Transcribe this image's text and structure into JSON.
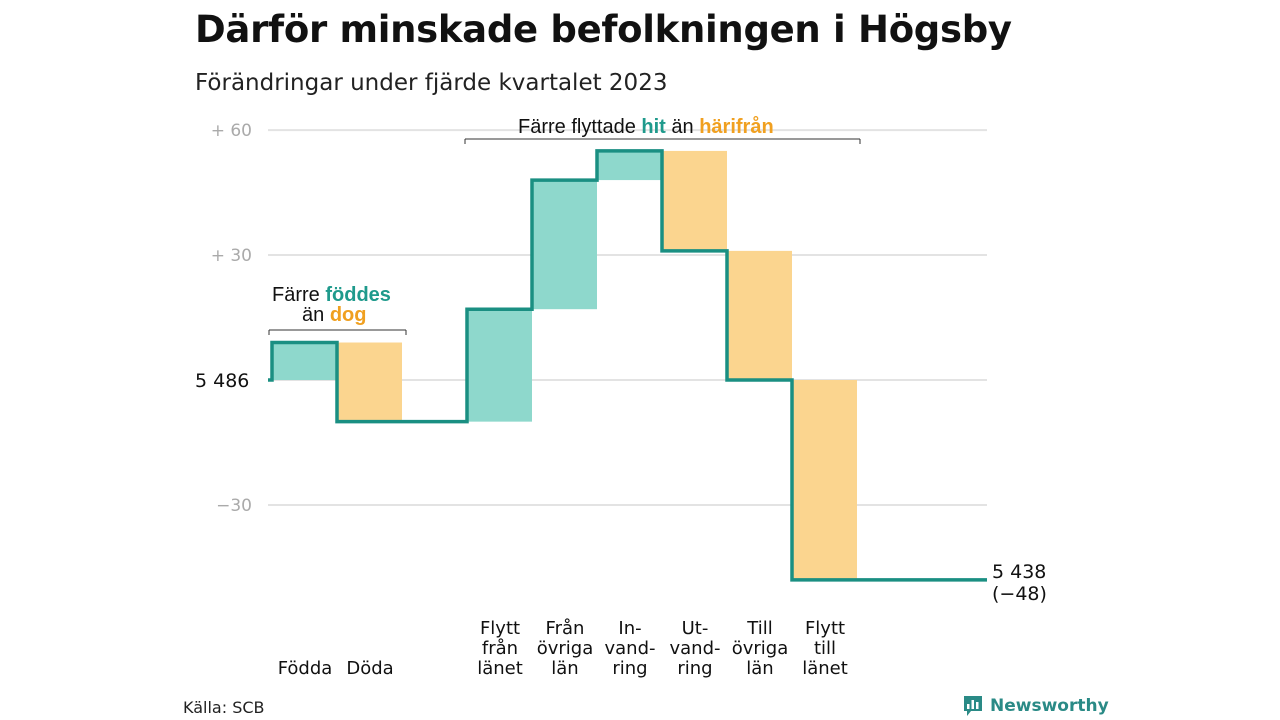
{
  "title": "Därför minskade befolkningen i Högsby",
  "subtitle": "Förändringar under fjärde kvartalet 2023",
  "source": "Källa: SCB",
  "brand": {
    "name": "Newsworthy",
    "icon": "newsworthy-logo-icon"
  },
  "colors": {
    "in": "#8ed8cc",
    "out": "#fbd58f",
    "line": "#1a8f82",
    "grid": "#e3e3e3"
  },
  "annotations": {
    "births": {
      "prefix": "Färre",
      "in_word": "föddes",
      "mid": "än",
      "out_word": "dog"
    },
    "moves": {
      "prefix": "Färre flyttade",
      "in_word": "hit",
      "mid": "än",
      "out_word": "härifrån"
    }
  },
  "chart_data": {
    "type": "waterfall",
    "start_value": 5486,
    "end_value": 5438,
    "start_label": "5 486",
    "end_label": "5 438",
    "change_label": "(−48)",
    "yticks": [
      {
        "label": "+ 60",
        "value": 60
      },
      {
        "label": "+ 30",
        "value": 30
      },
      {
        "label": "−30",
        "value": -30
      }
    ],
    "ylim": [
      -48,
      60
    ],
    "steps": [
      {
        "category": [
          "Födda"
        ],
        "delta": 9,
        "kind": "in"
      },
      {
        "category": [
          "Döda"
        ],
        "delta": -19,
        "kind": "out"
      },
      {
        "category": [
          "Flytt",
          "från",
          "länet"
        ],
        "delta": 27,
        "kind": "in"
      },
      {
        "category": [
          "Från",
          "övriga",
          "län"
        ],
        "delta": 31,
        "kind": "in"
      },
      {
        "category": [
          "In-",
          "vand-",
          "ring"
        ],
        "delta": 7,
        "kind": "in"
      },
      {
        "category": [
          "Ut-",
          "vand-",
          "ring"
        ],
        "delta": -24,
        "kind": "out"
      },
      {
        "category": [
          "Till",
          "övriga",
          "län"
        ],
        "delta": -31,
        "kind": "out"
      },
      {
        "category": [
          "Flytt",
          "till",
          "länet"
        ],
        "delta": -48,
        "kind": "out"
      }
    ]
  }
}
